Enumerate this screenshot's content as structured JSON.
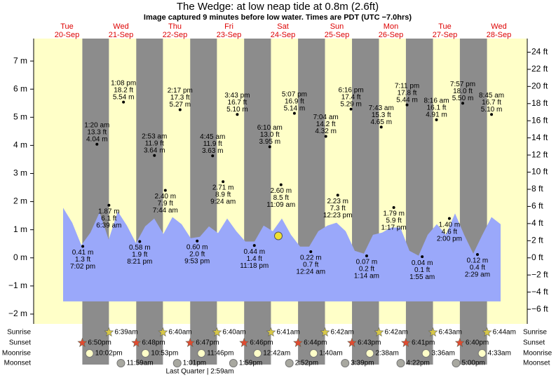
{
  "chart_data": {
    "type": "tide",
    "title": "The Wedge: at low  neap tide at 0.8m (2.6ft)",
    "subtitle": "Image captured 9 minutes before low water. Times are PDT (UTC −7.0hrs)",
    "ylim": [
      -2.35,
      7.8
    ],
    "yticks": [
      {
        "value": -2,
        "label": "−2 m"
      },
      {
        "value": -1,
        "label": "−1 m"
      },
      {
        "value": 0,
        "label": "0 m"
      },
      {
        "value": 1,
        "label": "1 m"
      },
      {
        "value": 2,
        "label": "2 m"
      },
      {
        "value": 3,
        "label": "3 m"
      },
      {
        "value": 4,
        "label": "4 m"
      },
      {
        "value": 5,
        "label": "5 m"
      },
      {
        "value": 6,
        "label": "6 m"
      },
      {
        "value": 7,
        "label": "7 m"
      }
    ],
    "y2lim": [
      -7.71,
      25.59
    ],
    "y2ticks": [
      {
        "value": -6,
        "label": "−6 ft"
      },
      {
        "value": -4,
        "label": "−4 ft"
      },
      {
        "value": -2,
        "label": "−2 ft"
      },
      {
        "value": 0,
        "label": "0 ft"
      },
      {
        "value": 2,
        "label": "2 ft"
      },
      {
        "value": 4,
        "label": "4 ft"
      },
      {
        "value": 6,
        "label": "6 ft"
      },
      {
        "value": 8,
        "label": "8 ft"
      },
      {
        "value": 10,
        "label": "10 ft"
      },
      {
        "value": 12,
        "label": "12 ft"
      },
      {
        "value": 14,
        "label": "14 ft"
      },
      {
        "value": 16,
        "label": "16 ft"
      },
      {
        "value": 18,
        "label": "18 ft"
      },
      {
        "value": 20,
        "label": "20 ft"
      },
      {
        "value": 22,
        "label": "22 ft"
      },
      {
        "value": 24,
        "label": "24 ft"
      }
    ],
    "curve": {
      "color": "#9aa8fa",
      "values": [
        1.78,
        1.25,
        0.45,
        0.9,
        1.62,
        0.65,
        1.65,
        1.15,
        0.52,
        1.12,
        1.4,
        0.85,
        1.45,
        1.2,
        0.7,
        0.75,
        1.12,
        0.88,
        1.4,
        0.95,
        0.58,
        0.58,
        1.15,
        0.95,
        1.4,
        0.82,
        0.4,
        0.4,
        0.95,
        1.15,
        1.25,
        0.95,
        0.25,
        0.15,
        0.82,
        0.9,
        1.08,
        1.08,
        0.25,
        0.08,
        0.82,
        1.2,
        0.82,
        1.58,
        0.82,
        0.15,
        0.82,
        1.45,
        1.2
      ]
    },
    "now_value": 0.78,
    "row_labels": [
      "Sunrise",
      "Sunset",
      "Moonrise",
      "Moonset"
    ],
    "moon_phase": "Last Quarter | 2:59am",
    "days": [
      {
        "name": "Tue",
        "date": "20-Sep",
        "sunset": "6:50pm",
        "moonrise": "10:02pm",
        "tides": [
          {
            "time": "7:02 pm",
            "value": 0.41,
            "label": "0.41 m",
            "ft": "1.3 ft"
          }
        ]
      },
      {
        "name": "Wed",
        "date": "21-Sep",
        "sunrise": "6:39am",
        "sunset": "6:48pm",
        "moonrise": "10:53pm",
        "moonset": "11:59am",
        "tides": [
          {
            "time": "1:20 am",
            "value": 4.04,
            "label": "4.04 m",
            "ft": "13.3 ft"
          },
          {
            "time": "6:39 am",
            "value": 1.87,
            "label": "1.87 m",
            "ft": "6.1 ft"
          },
          {
            "time": "1:08 pm",
            "value": 5.54,
            "label": "5.54 m",
            "ft": "18.2 ft"
          },
          {
            "time": "8:21 pm",
            "value": 0.58,
            "label": "0.58 m",
            "ft": "1.9 ft"
          }
        ]
      },
      {
        "name": "Thu",
        "date": "22-Sep",
        "sunrise": "6:40am",
        "sunset": "6:47pm",
        "moonrise": "11:46pm",
        "moonset": "1:01pm",
        "tides": [
          {
            "time": "2:53 am",
            "value": 3.64,
            "label": "3.64 m",
            "ft": "11.9 ft"
          },
          {
            "time": "7:44 am",
            "value": 2.4,
            "label": "2.40 m",
            "ft": "7.9 ft"
          },
          {
            "time": "2:17 pm",
            "value": 5.27,
            "label": "5.27 m",
            "ft": "17.3 ft"
          },
          {
            "time": "9:53 pm",
            "value": 0.6,
            "label": "0.60 m",
            "ft": "2.0 ft"
          }
        ]
      },
      {
        "name": "Fri",
        "date": "23-Sep",
        "sunrise": "6:40am",
        "sunset": "6:46pm",
        "moonset": "1:59pm",
        "tides": [
          {
            "time": "4:45 am",
            "value": 3.63,
            "label": "3.63 m",
            "ft": "11.9 ft"
          },
          {
            "time": "9:24 am",
            "value": 2.71,
            "label": "2.71 m",
            "ft": "8.9 ft"
          },
          {
            "time": "3:43 pm",
            "value": 5.1,
            "label": "5.10 m",
            "ft": "16.7 ft"
          },
          {
            "time": "11:18 pm",
            "value": 0.44,
            "label": "0.44 m",
            "ft": "1.4 ft"
          }
        ]
      },
      {
        "name": "Sat",
        "date": "24-Sep",
        "sunrise": "6:41am",
        "sunset": "6:44pm",
        "moonrise": "12:42am",
        "moonset": "2:52pm",
        "tides": [
          {
            "time": "6:10 am",
            "value": 3.95,
            "label": "3.95 m",
            "ft": "13.0 ft"
          },
          {
            "time": "11:09 am",
            "value": 2.6,
            "label": "2.60 m",
            "ft": "8.5 ft"
          },
          {
            "time": "5:07 pm",
            "value": 5.14,
            "label": "5.14 m",
            "ft": "16.9 ft"
          }
        ]
      },
      {
        "name": "Sun",
        "date": "25-Sep",
        "sunrise": "6:42am",
        "sunset": "6:43pm",
        "moonrise": "1:40am",
        "moonset": "3:39pm",
        "tides": [
          {
            "time": "12:24 am",
            "value": 0.22,
            "label": "0.22 m",
            "ft": "0.7 ft"
          },
          {
            "time": "7:04 am",
            "value": 4.32,
            "label": "4.32 m",
            "ft": "14.2 ft"
          },
          {
            "time": "12:23 pm",
            "value": 2.23,
            "label": "2.23 m",
            "ft": "7.3 ft"
          },
          {
            "time": "6:16 pm",
            "value": 5.29,
            "label": "5.29 m",
            "ft": "17.4 ft"
          }
        ]
      },
      {
        "name": "Mon",
        "date": "26-Sep",
        "sunrise": "6:42am",
        "sunset": "6:41pm",
        "moonrise": "2:38am",
        "moonset": "4:22pm",
        "tides": [
          {
            "time": "1:14 am",
            "value": 0.07,
            "label": "0.07 m",
            "ft": "0.2 ft"
          },
          {
            "time": "7:43 am",
            "value": 4.65,
            "label": "4.65 m",
            "ft": "15.3 ft"
          },
          {
            "time": "1:17 pm",
            "value": 1.79,
            "label": "1.79 m",
            "ft": "5.9 ft"
          },
          {
            "time": "7:11 pm",
            "value": 5.44,
            "label": "5.44 m",
            "ft": "17.8 ft"
          }
        ]
      },
      {
        "name": "Tue",
        "date": "27-Sep",
        "sunrise": "6:43am",
        "sunset": "6:40pm",
        "moonrise": "3:36am",
        "moonset": "5:00pm",
        "tides": [
          {
            "time": "1:55 am",
            "value": 0.04,
            "label": "0.04 m",
            "ft": "0.1 ft"
          },
          {
            "time": "8:16 am",
            "value": 4.91,
            "label": "4.91 m",
            "ft": "16.1 ft"
          },
          {
            "time": "2:00 pm",
            "value": 1.4,
            "label": "1.40 m",
            "ft": "4.6 ft"
          },
          {
            "time": "7:57 pm",
            "value": 5.5,
            "label": "5.50 m",
            "ft": "18.0 ft"
          }
        ]
      },
      {
        "name": "Wed",
        "date": "28-Sep",
        "sunrise": "6:44am",
        "moonrise": "4:33am",
        "tides": [
          {
            "time": "2:29 am",
            "value": 0.12,
            "label": "0.12 m",
            "ft": "0.4 ft"
          },
          {
            "time": "8:45 am",
            "value": 5.1,
            "label": "5.10 m",
            "ft": "16.7 ft"
          }
        ]
      }
    ]
  }
}
